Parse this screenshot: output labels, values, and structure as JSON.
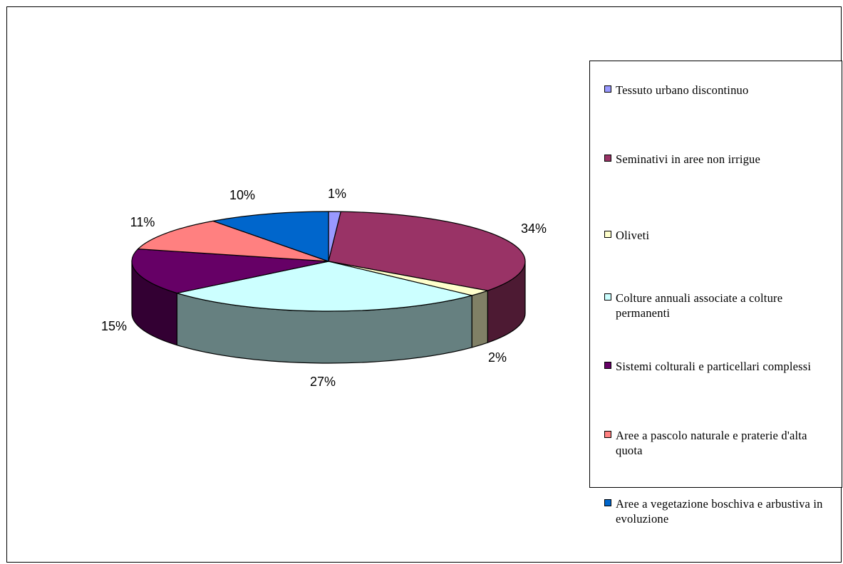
{
  "chart_data": {
    "type": "pie",
    "three_d": true,
    "legend_position": "right",
    "categories": [
      "Tessuto urbano discontinuo",
      "Seminativi in aree non irrigue",
      "Oliveti",
      "Colture annuali associate a colture permanenti",
      "Sistemi colturali e particellari complessi",
      "Aree a pascolo naturale e praterie d'alta quota",
      "Aree a vegetazione boschiva  e arbustiva in evoluzione"
    ],
    "values": [
      1,
      34,
      2,
      27,
      15,
      11,
      10
    ],
    "value_labels": [
      "1%",
      "34%",
      "2%",
      "27%",
      "15%",
      "11%",
      "10%"
    ],
    "colors": [
      "#9999FF",
      "#993366",
      "#FFFFCC",
      "#CCFFFF",
      "#660066",
      "#FF8080",
      "#0066CC"
    ]
  }
}
